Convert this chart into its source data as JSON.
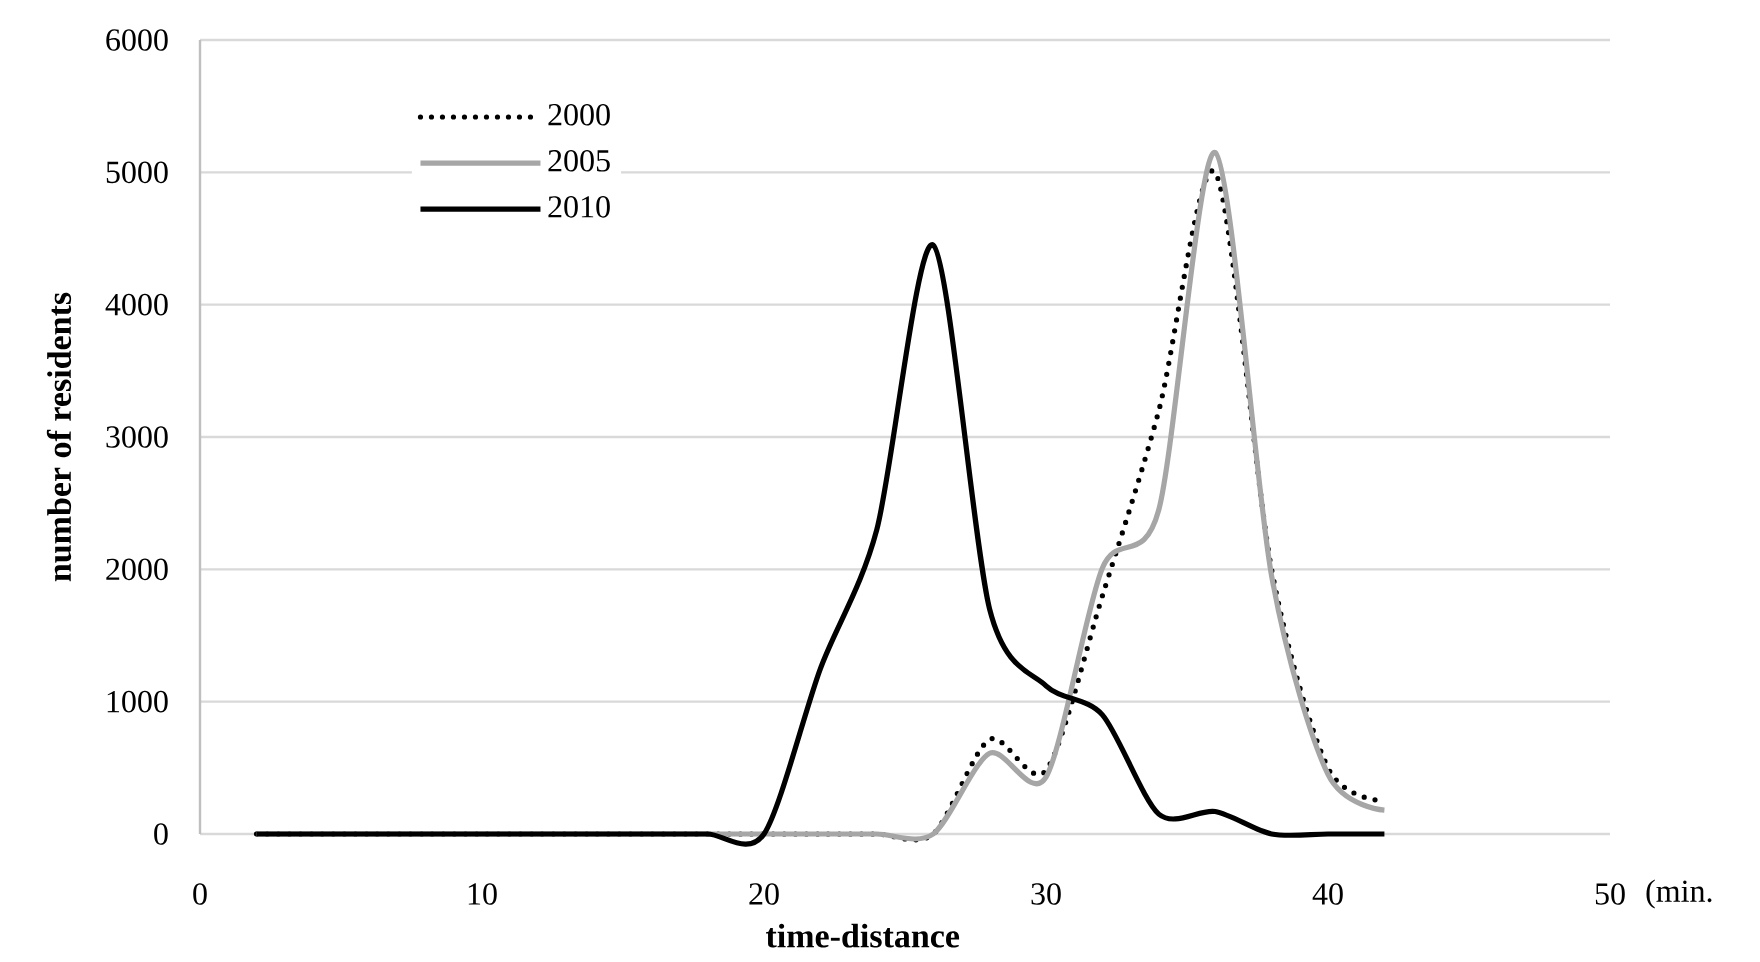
{
  "chart_data": {
    "type": "line",
    "xlabel": "time-distance",
    "ylabel": "number of residents",
    "annotations": [
      "(min."
    ],
    "x": [
      2,
      4,
      6,
      8,
      10,
      12,
      14,
      16,
      18,
      20,
      22,
      24,
      26,
      28,
      30,
      32,
      34,
      36,
      38,
      40,
      42
    ],
    "series": [
      {
        "name": "2000",
        "color": "#000000",
        "line_style": "dotted",
        "values": [
          0,
          0,
          0,
          0,
          0,
          0,
          0,
          0,
          0,
          0,
          0,
          0,
          0,
          715,
          480,
          1800,
          3200,
          5000,
          2000,
          500,
          250
        ]
      },
      {
        "name": "2005",
        "color": "#a6a6a6",
        "line_style": "solid",
        "values": [
          0,
          0,
          0,
          0,
          0,
          0,
          0,
          0,
          0,
          0,
          0,
          0,
          0,
          610,
          430,
          2010,
          2450,
          5150,
          1950,
          450,
          180
        ]
      },
      {
        "name": "2010",
        "color": "#000000",
        "line_style": "solid",
        "values": [
          0,
          0,
          0,
          0,
          0,
          0,
          0,
          0,
          0,
          0,
          1250,
          2300,
          4450,
          1700,
          1120,
          900,
          150,
          170,
          0,
          0,
          0
        ]
      }
    ],
    "xlim": [
      0,
      50
    ],
    "xticks": [
      0,
      10,
      20,
      30,
      40,
      50
    ],
    "ylim": [
      0,
      6000
    ],
    "yticks": [
      0,
      1000,
      2000,
      3000,
      4000,
      5000,
      6000
    ],
    "grid": "y",
    "legend": "top left",
    "marker": "none"
  }
}
